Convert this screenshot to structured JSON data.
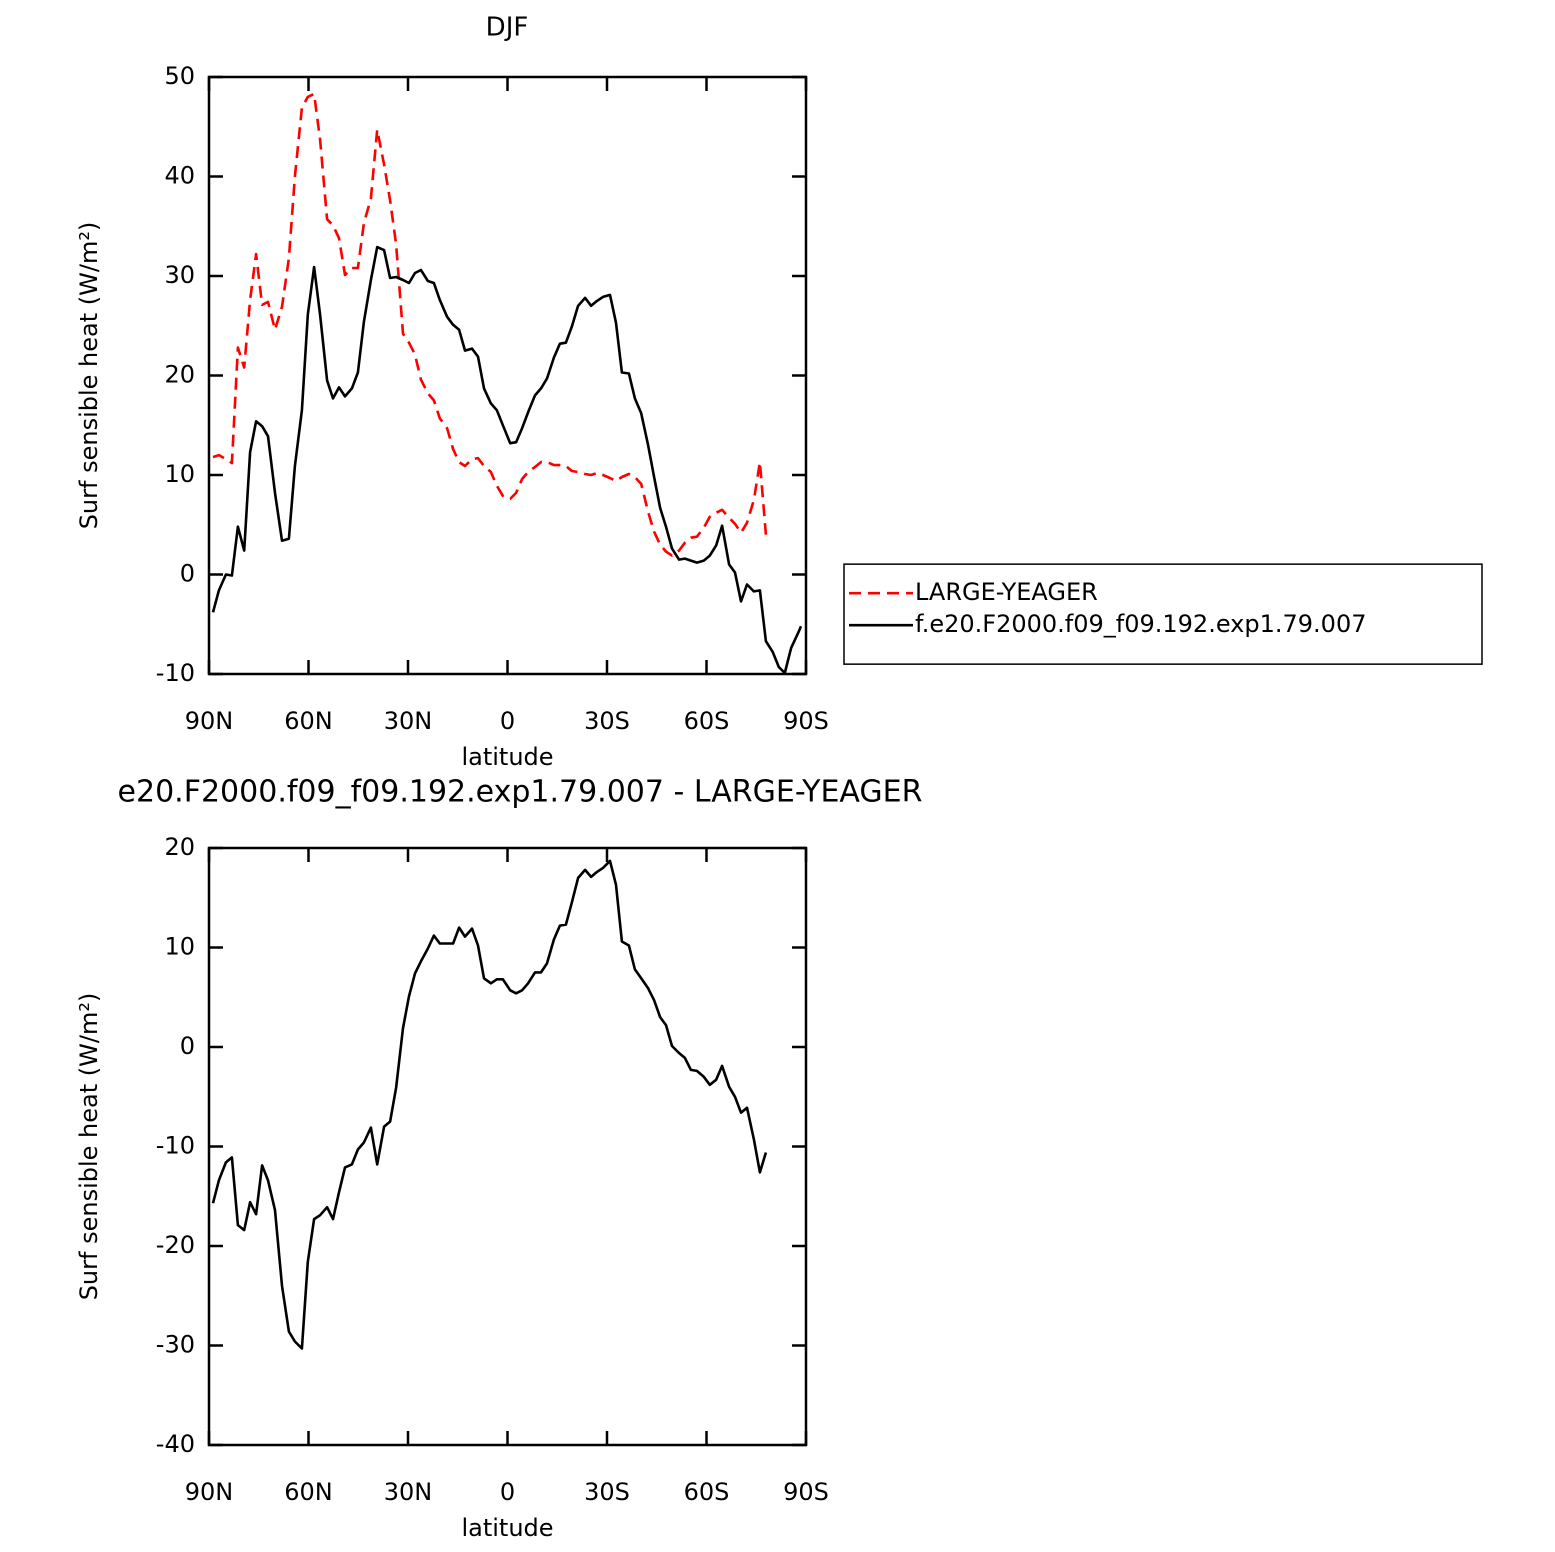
{
  "chart_data": [
    {
      "type": "line",
      "title": "DJF",
      "xlabel": "latitude",
      "ylabel": "Surf sensible heat (W/m²)",
      "xlim": [
        90,
        -90
      ],
      "xticks": [
        {
          "value": 90,
          "label": "90N"
        },
        {
          "value": 60,
          "label": "60N"
        },
        {
          "value": 30,
          "label": "30N"
        },
        0,
        {
          "value": -30,
          "label": "30S"
        },
        {
          "value": -60,
          "label": "60S"
        },
        {
          "value": -90,
          "label": "90S"
        }
      ],
      "ylim": [
        -10,
        50
      ],
      "yticks": [
        -10,
        0,
        10,
        20,
        30,
        40,
        50
      ],
      "grid": false,
      "legend": "right",
      "x": [
        88.8,
        87.0,
        84.9,
        83.1,
        81.3,
        79.4,
        77.6,
        75.8,
        74.0,
        72.2,
        70.1,
        68.0,
        65.9,
        64.1,
        62.0,
        60.2,
        58.3,
        56.5,
        54.4,
        52.6,
        50.8,
        49.0,
        46.9,
        45.1,
        43.3,
        41.2,
        39.3,
        37.2,
        35.4,
        33.6,
        31.5,
        29.7,
        27.9,
        26.1,
        24.0,
        22.2,
        20.4,
        18.2,
        16.4,
        14.6,
        12.8,
        10.7,
        8.9,
        7.1,
        5.0,
        3.2,
        1.4,
        -0.8,
        -2.6,
        -4.4,
        -6.2,
        -8.3,
        -10.1,
        -11.9,
        -14.0,
        -15.8,
        -17.6,
        -19.4,
        -21.3,
        -23.4,
        -25.2,
        -27.0,
        -28.8,
        -30.9,
        -32.7,
        -34.5,
        -36.6,
        -38.4,
        -40.3,
        -42.4,
        -44.2,
        -46.0,
        -47.8,
        -49.6,
        -51.7,
        -53.5,
        -55.3,
        -57.1,
        -59.2,
        -61.0,
        -62.9,
        -64.7,
        -66.8,
        -68.6,
        -70.4,
        -72.2,
        -74.3,
        -76.1,
        -77.9,
        -80.0,
        -81.8,
        -83.6,
        -85.5,
        -87.6,
        -88.5
      ],
      "series": [
        {
          "name": "LARGE-YEAGER",
          "color": "#ff0000",
          "dash": true,
          "values": [
            11.8,
            12,
            11.6,
            11.2,
            22.8,
            20.8,
            27.6,
            32.2,
            27.1,
            27.4,
            24.6,
            26.9,
            31.8,
            40,
            46.9,
            48,
            48.3,
            43.7,
            35.7,
            35.1,
            33.8,
            30.1,
            30.8,
            30.8,
            35.3,
            37.8,
            44.7,
            41.2,
            37.6,
            33.2,
            24.2,
            23.3,
            22.1,
            19.6,
            18.2,
            17.5,
            15.7,
            14.7,
            12.6,
            11.3,
            10.9,
            11.6,
            11.7,
            10.9,
            10.3,
            8.9,
            7.9,
            7.6,
            8.2,
            9.6,
            10.3,
            10.8,
            11.3,
            11.3,
            11,
            11,
            10.9,
            10.4,
            10.3,
            10.1,
            10,
            10.2,
            10,
            9.7,
            9.4,
            9.8,
            10.1,
            9.8,
            9.1,
            6.3,
            4.3,
            3,
            2.3,
            1.9,
            2.4,
            3.2,
            3.7,
            3.8,
            4.7,
            5.8,
            6.2,
            6.5,
            5.7,
            5.1,
            4.2,
            5.2,
            7.5,
            11.3,
            4.0,
            null,
            null,
            null,
            null,
            null,
            null
          ]
        },
        {
          "name": "f.e20.F2000.f09_f09.192.exp1.79.007",
          "color": "#000000",
          "dash": false,
          "values": [
            -3.8,
            -1.6,
            0,
            -0.1,
            4.8,
            2.4,
            12.3,
            15.4,
            14.9,
            13.9,
            8.2,
            3.4,
            3.6,
            10.9,
            16.5,
            26.1,
            30.9,
            26.1,
            19.5,
            17.7,
            18.8,
            17.9,
            18.7,
            20.3,
            25.4,
            29.6,
            32.9,
            32.6,
            29.8,
            29.9,
            29.6,
            29.3,
            30.3,
            30.6,
            29.5,
            29.3,
            27.6,
            25.9,
            25.1,
            24.6,
            22.5,
            22.7,
            21.9,
            18.7,
            17.2,
            16.5,
            15,
            13.2,
            13.3,
            14.7,
            16.3,
            18,
            18.7,
            19.7,
            21.8,
            23.2,
            23.3,
            24.9,
            27,
            27.8,
            27,
            27.5,
            27.9,
            28.1,
            25.3,
            20.3,
            20.2,
            17.7,
            16.2,
            13,
            9.8,
            6.7,
            4.8,
            2.6,
            1.5,
            1.6,
            1.4,
            1.2,
            1.4,
            1.9,
            2.9,
            4.9,
            1,
            0.2,
            -2.7,
            -1,
            -1.7,
            -1.6,
            -6.7,
            -7.8,
            -9.3,
            -9.9,
            -7.4,
            -5.9,
            -5.2
          ]
        }
      ]
    },
    {
      "type": "line",
      "title": "e20.F2000.f09_f09.192.exp1.79.007 - LARGE-YEAGER",
      "xlabel": "latitude",
      "ylabel": "Surf sensible heat (W/m²)",
      "xlim": [
        90,
        -90
      ],
      "xticks": [
        {
          "value": 90,
          "label": "90N"
        },
        {
          "value": 60,
          "label": "60N"
        },
        {
          "value": 30,
          "label": "30N"
        },
        0,
        {
          "value": -30,
          "label": "30S"
        },
        {
          "value": -60,
          "label": "60S"
        },
        {
          "value": -90,
          "label": "90S"
        }
      ],
      "ylim": [
        -40,
        20
      ],
      "yticks": [
        -40,
        -30,
        -20,
        -10,
        0,
        10,
        20
      ],
      "grid": false,
      "color": "#000000",
      "x": [
        88.8,
        87.0,
        84.9,
        83.1,
        81.3,
        79.4,
        77.6,
        75.8,
        74.0,
        72.2,
        70.1,
        68.0,
        65.9,
        64.1,
        62.0,
        60.2,
        58.3,
        56.5,
        54.4,
        52.6,
        50.8,
        49.0,
        46.9,
        45.1,
        43.3,
        41.2,
        39.3,
        37.2,
        35.4,
        33.6,
        31.5,
        29.7,
        27.9,
        26.1,
        24.0,
        22.2,
        20.4,
        18.2,
        16.4,
        14.6,
        12.8,
        10.7,
        8.9,
        7.1,
        5.0,
        3.2,
        1.4,
        -0.8,
        -2.6,
        -4.4,
        -6.2,
        -8.3,
        -10.1,
        -11.9,
        -14.0,
        -15.8,
        -17.6,
        -19.4,
        -21.3,
        -23.4,
        -25.2,
        -27.0,
        -28.8,
        -30.9,
        -32.7,
        -34.5,
        -36.6,
        -38.4,
        -40.3,
        -42.4,
        -44.2,
        -46.0,
        -47.8,
        -49.6,
        -51.7,
        -53.5,
        -55.3,
        -57.1,
        -59.2,
        -61.0,
        -62.9,
        -64.7,
        -66.8,
        -68.6,
        -70.4,
        -72.2,
        -74.3,
        -76.1,
        -77.9,
        -80.0,
        -81.8,
        -83.6,
        -85.5,
        -87.6,
        -88.5
      ],
      "values": [
        -15.7,
        -13.4,
        -11.6,
        -11.1,
        -17.9,
        -18.4,
        -15.6,
        -16.8,
        -11.9,
        -13.4,
        -16.4,
        -24,
        -28.6,
        -29.6,
        -30.3,
        -21.6,
        -17.3,
        -16.9,
        -16.1,
        -17.3,
        -14.6,
        -12.1,
        -11.8,
        -10.3,
        -9.6,
        -8.1,
        -11.8,
        -8,
        -7.5,
        -4.1,
        1.9,
        5.1,
        7.4,
        8.6,
        9.9,
        11.2,
        10.4,
        10.4,
        10.4,
        12,
        11.1,
        11.9,
        10.2,
        6.9,
        6.4,
        6.8,
        6.8,
        5.7,
        5.4,
        5.7,
        6.4,
        7.5,
        7.5,
        8.4,
        10.8,
        12.2,
        12.3,
        14.5,
        17,
        17.8,
        17.1,
        17.6,
        18,
        18.7,
        16.3,
        10.6,
        10.2,
        7.8,
        6.9,
        5.9,
        4.7,
        3,
        2.2,
        0.1,
        -0.6,
        -1.1,
        -2.3,
        -2.4,
        -3,
        -3.8,
        -3.3,
        -1.9,
        -4,
        -5,
        -6.6,
        -6.1,
        -9.3,
        -12.6,
        -10.6,
        null,
        null,
        null,
        null,
        null,
        null
      ]
    }
  ]
}
